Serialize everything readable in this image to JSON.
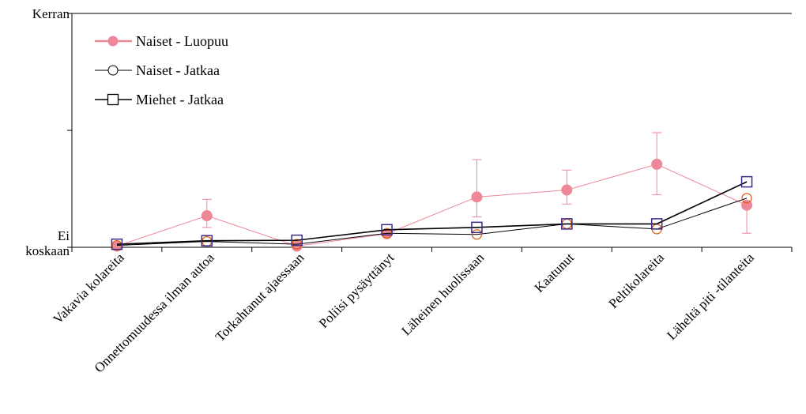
{
  "chart_data": {
    "type": "line",
    "categories": [
      "Vakavia kolareita",
      "Onnettomuudessa ilman autoa",
      "Torkahtanut ajaessaan",
      "Poliisi pysäyttänyt",
      "Läheinen huolissaan",
      "Kaatunut",
      "Peltikolareita",
      "Läheltä piti -tilanteita"
    ],
    "ylim": [
      0,
      1
    ],
    "yticks": [
      {
        "value": 0,
        "label": "Ei\nkoskaan"
      },
      {
        "value": 0.5,
        "label": ""
      },
      {
        "value": 1,
        "label": "Kerran"
      }
    ],
    "legend_position": "top-left",
    "series": [
      {
        "name": "Naiset - Luopuu",
        "color": "#ee8899",
        "marker": "filled-circle",
        "values": [
          0.005,
          0.135,
          0.005,
          0.058,
          0.215,
          0.245,
          0.355,
          0.18
        ],
        "error_low": [
          null,
          0.085,
          null,
          null,
          0.13,
          0.185,
          0.225,
          0.06
        ],
        "error_high": [
          null,
          0.205,
          null,
          null,
          0.375,
          0.33,
          0.49,
          null
        ]
      },
      {
        "name": "Naiset - Jatkaa",
        "color": "#000000",
        "marker": "open-circle",
        "values": [
          0.008,
          0.025,
          0.013,
          0.06,
          0.055,
          0.1,
          0.078,
          0.21
        ],
        "marker_color": "#e06018"
      },
      {
        "name": "Miehet - Jatkaa",
        "color": "#000000",
        "marker": "open-square",
        "values": [
          0.013,
          0.028,
          0.03,
          0.075,
          0.085,
          0.1,
          0.1,
          0.28
        ],
        "marker_color": "#3a2a8a"
      }
    ]
  }
}
